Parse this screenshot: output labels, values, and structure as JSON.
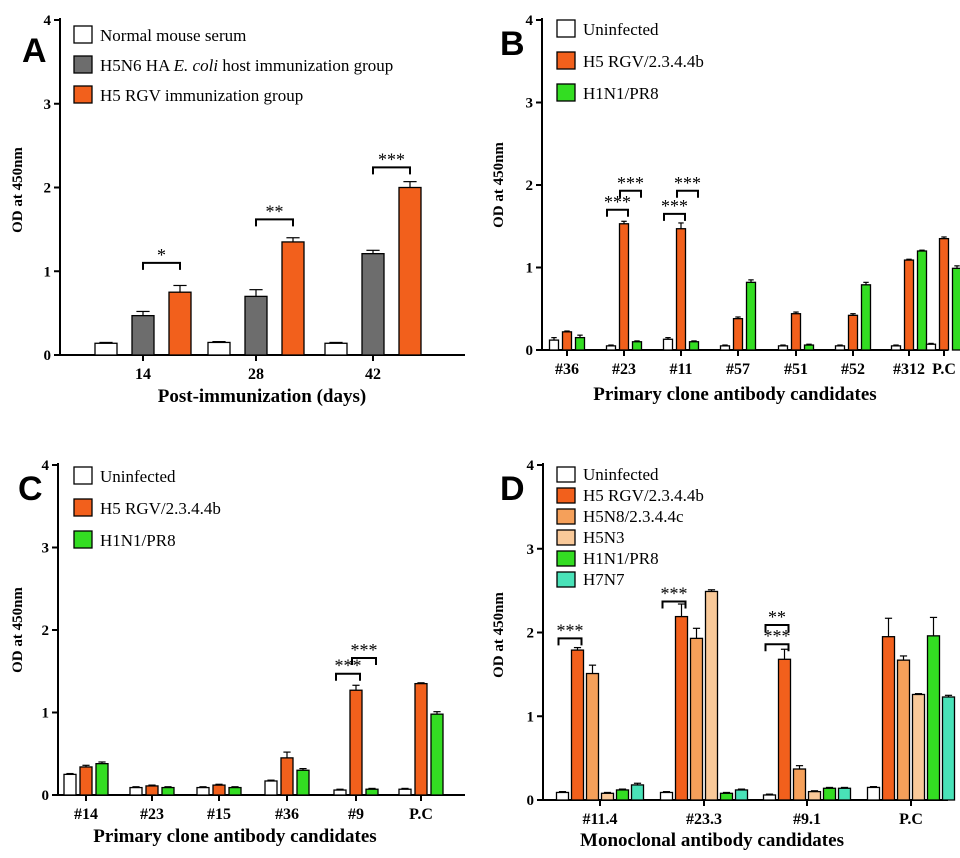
{
  "charts": [
    {
      "letter": "A",
      "type": "bar",
      "ylabel": "OD at 450nm",
      "xlabel": "Post-immunization (days)",
      "ylim": [
        0,
        4
      ],
      "yticks": [
        "0",
        "1",
        "2",
        "3",
        "4"
      ],
      "categories": [
        "14",
        "28",
        "42"
      ],
      "series": [
        {
          "name": "Normal mouse serum",
          "color": "#ffffff",
          "values": [
            0.14,
            0.15,
            0.14
          ],
          "errors": [
            0.01,
            0.01,
            0.01
          ]
        },
        {
          "name": "H5N6 HA E. coli host immunization group",
          "color": "#6d6d6d",
          "values": [
            0.47,
            0.7,
            1.21
          ],
          "errors": [
            0.05,
            0.08,
            0.04
          ]
        },
        {
          "name": "H5 RGV immunization group",
          "color": "#f2601c",
          "values": [
            0.75,
            1.35,
            2.0
          ],
          "errors": [
            0.08,
            0.05,
            0.07
          ]
        }
      ],
      "legend": [
        {
          "text": "Normal mouse serum"
        },
        {
          "pre": "H5N6 HA ",
          "it": "E. coli",
          "post": " host immunization group"
        },
        {
          "text": "H5 RGV immunization group"
        }
      ],
      "significance": [
        {
          "label": "*",
          "cat": 0,
          "from": 1,
          "to": 2,
          "y": 1.1
        },
        {
          "label": "**",
          "cat": 1,
          "from": 1,
          "to": 2,
          "y": 1.62
        },
        {
          "label": "***",
          "cat": 2,
          "from": 1,
          "to": 2,
          "y": 2.24
        }
      ]
    },
    {
      "letter": "B",
      "type": "bar",
      "ylabel": "OD at 450nm",
      "xlabel": "Primary clone antibody candidates",
      "ylim": [
        0,
        4
      ],
      "yticks": [
        "0",
        "1",
        "2",
        "3",
        "4"
      ],
      "categories": [
        "#36",
        "#23",
        "#11",
        "#57",
        "#51",
        "#52",
        "#312",
        "P.C"
      ],
      "series": [
        {
          "name": "Uninfected",
          "color": "#ffffff",
          "values": [
            0.12,
            0.05,
            0.13,
            0.05,
            0.05,
            0.05,
            0.05,
            0.07
          ],
          "errors": [
            0.03,
            0.01,
            0.02,
            0.01,
            0.01,
            0.01,
            0.01,
            0.01
          ]
        },
        {
          "name": "H5 RGV/2.3.4.4b",
          "color": "#f2601c",
          "values": [
            0.22,
            1.53,
            1.47,
            0.38,
            0.44,
            0.42,
            1.09,
            1.35
          ],
          "errors": [
            0.01,
            0.03,
            0.07,
            0.02,
            0.02,
            0.02,
            0.01,
            0.02
          ]
        },
        {
          "name": "H1N1/PR8",
          "color": "#33dd22",
          "values": [
            0.15,
            0.1,
            0.1,
            0.82,
            0.06,
            0.79,
            1.2,
            0.99
          ],
          "errors": [
            0.03,
            0.01,
            0.01,
            0.03,
            0.01,
            0.03,
            0.01,
            0.03
          ]
        }
      ],
      "legend": [
        {
          "text": "Uninfected"
        },
        {
          "text": "H5 RGV/2.3.4.4b"
        },
        {
          "text": "H1N1/PR8"
        }
      ],
      "significance": [
        {
          "label": "***",
          "cat": 1,
          "from": 0,
          "to": 1,
          "y": 1.7
        },
        {
          "label": "***",
          "cat": 1,
          "from": 1,
          "to": 2,
          "y": 1.93
        },
        {
          "label": "***",
          "cat": 2,
          "from": 0,
          "to": 1,
          "y": 1.65
        },
        {
          "label": "***",
          "cat": 2,
          "from": 1,
          "to": 2,
          "y": 1.93
        }
      ]
    },
    {
      "letter": "C",
      "type": "bar",
      "ylabel": "OD at 450nm",
      "xlabel": "Primary clone antibody candidates",
      "ylim": [
        0,
        4
      ],
      "yticks": [
        "0",
        "1",
        "2",
        "3",
        "4"
      ],
      "categories": [
        "#14",
        "#23",
        "#15",
        "#36",
        "#9",
        "P.C"
      ],
      "series": [
        {
          "name": "Uninfected",
          "color": "#ffffff",
          "values": [
            0.25,
            0.09,
            0.09,
            0.17,
            0.06,
            0.07
          ],
          "errors": [
            0.01,
            0.01,
            0.01,
            0.01,
            0.01,
            0.01
          ]
        },
        {
          "name": "H5 RGV/2.3.4.4b",
          "color": "#f2601c",
          "values": [
            0.34,
            0.11,
            0.12,
            0.45,
            1.27,
            1.35
          ],
          "errors": [
            0.02,
            0.01,
            0.01,
            0.07,
            0.06,
            0.01
          ]
        },
        {
          "name": "H1N1/PR8",
          "color": "#33dd22",
          "values": [
            0.38,
            0.09,
            0.09,
            0.3,
            0.07,
            0.98
          ],
          "errors": [
            0.02,
            0.01,
            0.01,
            0.02,
            0.01,
            0.03
          ]
        }
      ],
      "legend": [
        {
          "text": "Uninfected"
        },
        {
          "text": "H5 RGV/2.3.4.4b"
        },
        {
          "text": "H1N1/PR8"
        }
      ],
      "significance": [
        {
          "label": "***",
          "cat": 4,
          "from": 0,
          "to": 1,
          "y": 1.47
        },
        {
          "label": "***",
          "cat": 4,
          "from": 1,
          "to": 2,
          "y": 1.66
        }
      ]
    },
    {
      "letter": "D",
      "type": "bar",
      "ylabel": "OD at 450nm",
      "xlabel": "Monoclonal antibody candidates",
      "ylim": [
        0,
        4
      ],
      "yticks": [
        "0",
        "1",
        "2",
        "3",
        "4"
      ],
      "categories": [
        "#11.4",
        "#23.3",
        "#9.1",
        "P.C"
      ],
      "series": [
        {
          "name": "Uninfected",
          "color": "#ffffff",
          "values": [
            0.09,
            0.09,
            0.06,
            0.15
          ],
          "errors": [
            0.01,
            0.01,
            0.01,
            0.01
          ]
        },
        {
          "name": "H5 RGV/2.3.4.4b",
          "color": "#f2601c",
          "values": [
            1.79,
            2.19,
            1.68,
            1.95
          ],
          "errors": [
            0.03,
            0.15,
            0.12,
            0.22
          ]
        },
        {
          "name": "H5N8/2.3.4.4c",
          "color": "#f5a05a",
          "values": [
            1.51,
            1.93,
            0.37,
            1.67
          ],
          "errors": [
            0.1,
            0.12,
            0.04,
            0.05
          ]
        },
        {
          "name": "H5N3",
          "color": "#f9c999",
          "values": [
            0.08,
            2.49,
            0.1,
            1.26
          ],
          "errors": [
            0.01,
            0.02,
            0.01,
            0.01
          ]
        },
        {
          "name": "H1N1/PR8",
          "color": "#33dd22",
          "values": [
            0.12,
            0.08,
            0.14,
            1.96
          ],
          "errors": [
            0.01,
            0.01,
            0.01,
            0.22
          ]
        },
        {
          "name": "H7N7",
          "color": "#49e2b8",
          "values": [
            0.18,
            0.12,
            0.14,
            1.23
          ],
          "errors": [
            0.02,
            0.01,
            0.01,
            0.02
          ]
        }
      ],
      "legend": [
        {
          "text": "Uninfected"
        },
        {
          "text": "H5 RGV/2.3.4.4b"
        },
        {
          "text": "H5N8/2.3.4.4c"
        },
        {
          "text": "H5N3"
        },
        {
          "text": "H1N1/PR8"
        },
        {
          "text": "H7N7"
        }
      ],
      "significance": [
        {
          "label": "***",
          "cat": 0,
          "from": 0,
          "to": 1,
          "y": 1.93
        },
        {
          "label": "***",
          "cat": 1,
          "from": 0,
          "to": 1,
          "y": 2.37
        },
        {
          "label": "***",
          "cat": 2,
          "from": 0,
          "to": 1,
          "y": 1.86
        },
        {
          "label": "**",
          "cat": 2,
          "from": 0,
          "to": 1,
          "y": 2.09
        }
      ]
    }
  ]
}
